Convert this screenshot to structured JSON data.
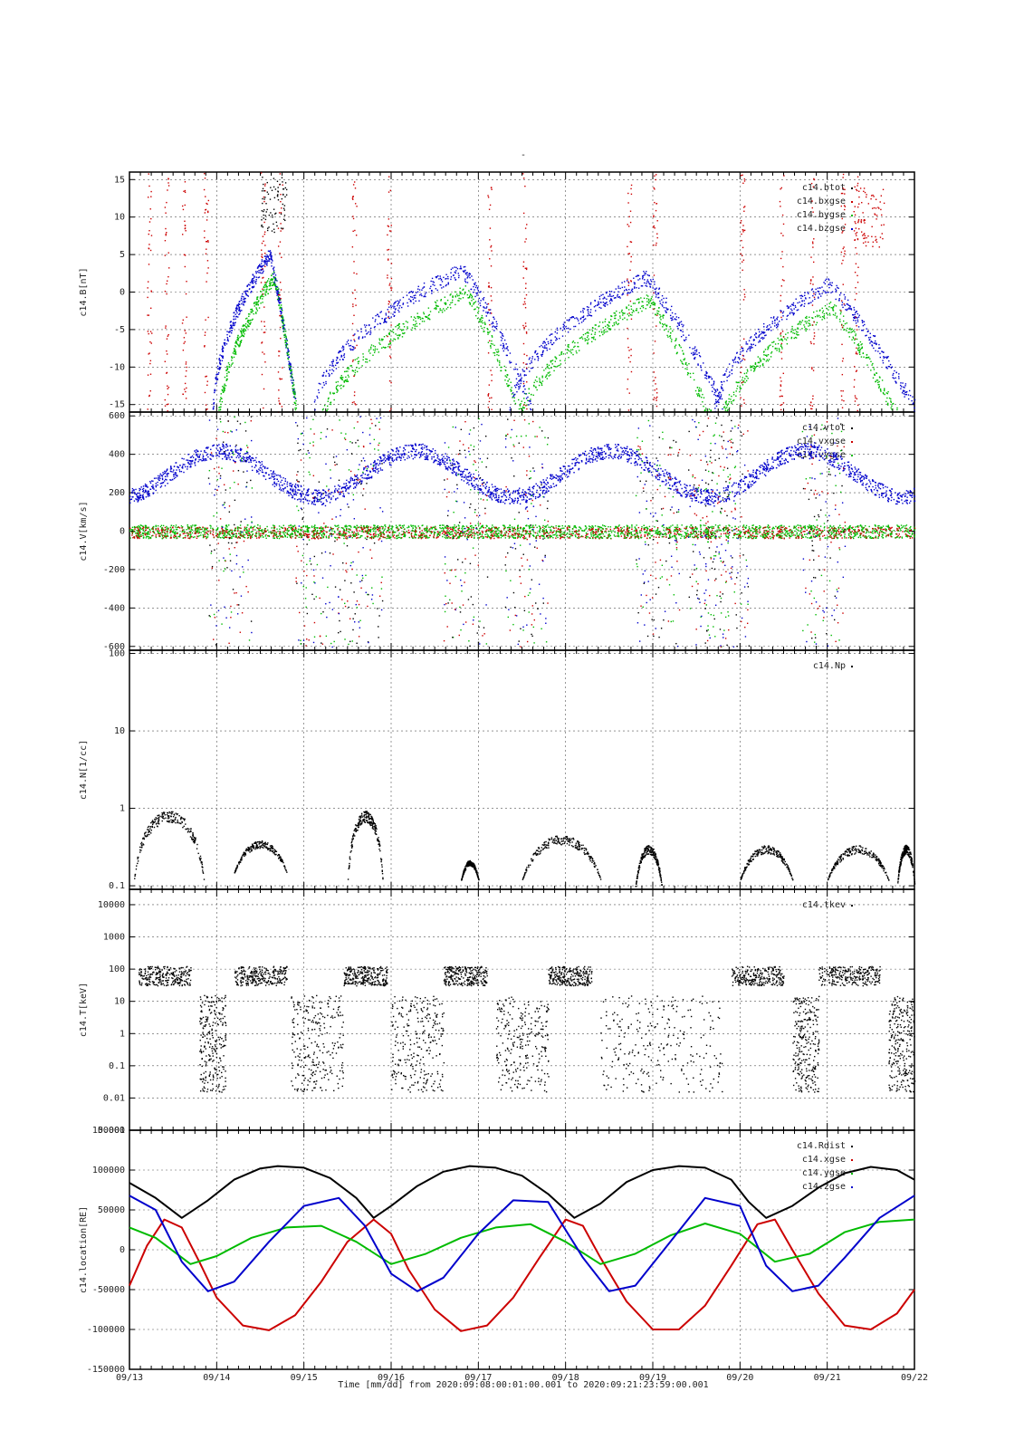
{
  "page": {
    "title_mark": "-"
  },
  "xaxis": {
    "ticks": [
      "09/13",
      "09/14",
      "09/15",
      "09/16",
      "09/17",
      "09/18",
      "09/19",
      "09/20",
      "09/21",
      "09/22"
    ],
    "label": "Time [mm/dd]  from 2020:09:08:00:01:00.001  to  2020:09:21:23:59:00.001"
  },
  "colors": {
    "black": "#000000",
    "red": "#cc0000",
    "green": "#00bb00",
    "blue": "#0000cc"
  },
  "chart_data": [
    {
      "type": "scatter",
      "ylabel": "c14.B[nT]",
      "ylim": [
        -16,
        16
      ],
      "yticks": [
        "15",
        "10",
        "5",
        "0",
        "-5",
        "-10",
        "-15"
      ],
      "legend": [
        "c14.btot",
        "c14.bxgse",
        "c14.bygse",
        "c14.bzgse"
      ],
      "legend_placement": "top-right",
      "grid": true
    },
    {
      "type": "scatter",
      "ylabel": "c14.V[km/s]",
      "ylim": [
        -620,
        620
      ],
      "yticks": [
        "600",
        "400",
        "200",
        "0",
        "-200",
        "-400",
        "-600"
      ],
      "legend": [
        "c14.vtot",
        "c14.vxgse",
        "c14.vygse"
      ],
      "legend_placement": "top-right",
      "grid": true
    },
    {
      "type": "scatter",
      "ylabel": "c14.N[1/cc]",
      "yscale": "log",
      "ylim": [
        0.09,
        110
      ],
      "yticks": [
        "100",
        "10",
        "1",
        "0.1"
      ],
      "legend": [
        "c14.Np"
      ],
      "legend_placement": "top-right",
      "grid": true
    },
    {
      "type": "scatter",
      "ylabel": "c14.T[keV]",
      "yscale": "log",
      "ylim": [
        0.001,
        30000
      ],
      "yticks": [
        "10000",
        "1000",
        "100",
        "10",
        "1",
        "0.1",
        "0.01",
        "0.001"
      ],
      "legend": [
        "c14.tkev"
      ],
      "legend_placement": "top-right",
      "grid": true
    },
    {
      "type": "line",
      "ylabel": "c14.location[RE]",
      "ylim": [
        -150000,
        150000
      ],
      "yticks": [
        "150000",
        "100000",
        "50000",
        "0",
        "-50000",
        "-100000",
        "-150000"
      ],
      "legend": [
        "c14.Rdist",
        "c14.xgse",
        "c14.ygse",
        "c14.zgse"
      ],
      "legend_placement": "top-right",
      "grid": true,
      "series": [
        {
          "name": "c14.Rdist",
          "color": "black",
          "x": [
            13,
            13.3,
            13.6,
            13.9,
            14.2,
            14.5,
            14.7,
            15.0,
            15.3,
            15.6,
            15.8,
            16.0,
            16.3,
            16.6,
            16.9,
            17.2,
            17.5,
            17.8,
            18.1,
            18.4,
            18.7,
            19.0,
            19.3,
            19.6,
            19.9,
            20.1,
            20.3,
            20.6,
            20.9,
            21.2,
            21.5,
            21.8,
            22.0
          ],
          "y": [
            84000,
            65000,
            40000,
            62000,
            88000,
            102000,
            105000,
            103000,
            90000,
            65000,
            40000,
            55000,
            80000,
            98000,
            105000,
            103000,
            93000,
            70000,
            40000,
            58000,
            85000,
            100000,
            105000,
            103000,
            88000,
            60000,
            40000,
            55000,
            78000,
            96000,
            104000,
            100000,
            88000
          ]
        },
        {
          "name": "c14.xgse",
          "color": "red",
          "x": [
            13,
            13.2,
            13.4,
            13.6,
            13.8,
            14.0,
            14.3,
            14.6,
            14.9,
            15.2,
            15.5,
            15.8,
            16.0,
            16.2,
            16.5,
            16.8,
            17.1,
            17.4,
            17.7,
            18.0,
            18.2,
            18.4,
            18.7,
            19.0,
            19.3,
            19.6,
            19.9,
            20.2,
            20.4,
            20.6,
            20.9,
            21.2,
            21.5,
            21.8,
            22.0
          ],
          "y": [
            -45000,
            5000,
            38000,
            28000,
            -15000,
            -60000,
            -95000,
            -101000,
            -82000,
            -40000,
            10000,
            38000,
            20000,
            -25000,
            -75000,
            -102000,
            -95000,
            -60000,
            -10000,
            38000,
            30000,
            -10000,
            -65000,
            -100000,
            -100000,
            -70000,
            -20000,
            32000,
            38000,
            0,
            -55000,
            -95000,
            -100000,
            -80000,
            -50000
          ]
        },
        {
          "name": "c14.ygse",
          "color": "green",
          "x": [
            13,
            13.3,
            13.7,
            14.0,
            14.4,
            14.8,
            15.2,
            15.6,
            16.0,
            16.4,
            16.8,
            17.2,
            17.6,
            18.0,
            18.4,
            18.8,
            19.2,
            19.6,
            20.0,
            20.4,
            20.8,
            21.2,
            21.6,
            22.0
          ],
          "y": [
            28000,
            15000,
            -18000,
            -8000,
            15000,
            28000,
            30000,
            10000,
            -18000,
            -5000,
            15000,
            28000,
            32000,
            10000,
            -18000,
            -5000,
            18000,
            33000,
            20000,
            -15000,
            -5000,
            22000,
            35000,
            38000
          ]
        },
        {
          "name": "c14.zgse",
          "color": "blue",
          "x": [
            13,
            13.3,
            13.6,
            13.9,
            14.2,
            14.6,
            15.0,
            15.4,
            15.7,
            16.0,
            16.3,
            16.6,
            17.0,
            17.4,
            17.8,
            18.2,
            18.5,
            18.8,
            19.2,
            19.6,
            20.0,
            20.3,
            20.6,
            20.9,
            21.2,
            21.6,
            22.0
          ],
          "y": [
            68000,
            50000,
            -15000,
            -52000,
            -40000,
            10000,
            55000,
            65000,
            30000,
            -30000,
            -52000,
            -35000,
            20000,
            62000,
            60000,
            -10000,
            -52000,
            -45000,
            10000,
            65000,
            55000,
            -20000,
            -52000,
            -45000,
            -10000,
            40000,
            68000
          ]
        }
      ]
    }
  ]
}
